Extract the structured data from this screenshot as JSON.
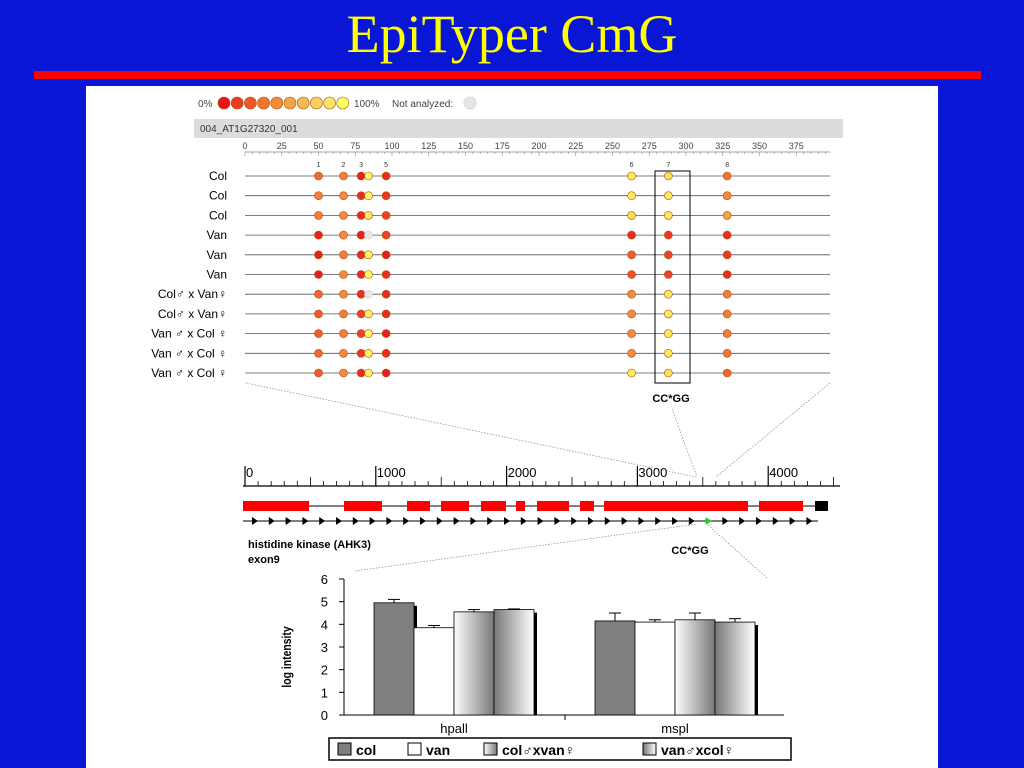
{
  "slide": {
    "title": "EpiTyper CmG"
  },
  "methylation_panel": {
    "legend_low": "0%",
    "legend_high": "100%",
    "legend_na": "Not analyzed:",
    "legend_colors": [
      "#e8141c",
      "#ea3a20",
      "#ec5a28",
      "#ee7430",
      "#f08c3a",
      "#f3a446",
      "#f6ba52",
      "#f9d05e",
      "#fbe468",
      "#ffff66"
    ],
    "amplicon": "004_AT1G27320_001",
    "ruler_ticks": [
      "0",
      "25",
      "50",
      "75",
      "100",
      "125",
      "150",
      "175",
      "200",
      "225",
      "250",
      "275",
      "300",
      "325",
      "350",
      "375"
    ],
    "cpg_labels": [
      {
        "label": "1",
        "pos": 50
      },
      {
        "label": "2",
        "pos": 67
      },
      {
        "label": "3",
        "pos": 79
      },
      {
        "label": "5",
        "pos": 96
      },
      {
        "label": "6",
        "pos": 263
      },
      {
        "label": "7",
        "pos": 288
      },
      {
        "label": "8",
        "pos": 328
      }
    ],
    "cpg_positions": [
      50,
      67,
      79,
      84,
      96,
      263,
      288,
      328
    ],
    "rows": [
      {
        "label": "Col",
        "meth": [
          0.35,
          0.45,
          0.05,
          0.95,
          0.1,
          0.9,
          0.85,
          0.4
        ]
      },
      {
        "label": "Col",
        "meth": [
          0.45,
          0.5,
          0.1,
          0.95,
          0.15,
          0.9,
          0.9,
          0.5
        ]
      },
      {
        "label": "Col",
        "meth": [
          0.45,
          0.5,
          0.1,
          0.9,
          0.2,
          0.85,
          0.9,
          0.6
        ]
      },
      {
        "label": "Van",
        "meth": [
          0.05,
          0.5,
          0.05,
          null,
          0.2,
          0.1,
          0.15,
          0.1
        ]
      },
      {
        "label": "Van",
        "meth": [
          0.05,
          0.45,
          0.1,
          0.95,
          0.05,
          0.3,
          0.2,
          0.15
        ]
      },
      {
        "label": "Van",
        "meth": [
          0.05,
          0.5,
          0.1,
          0.95,
          0.1,
          0.25,
          0.2,
          0.1
        ]
      },
      {
        "label": "Col♂ x  Van♀",
        "meth": [
          0.35,
          0.5,
          0.1,
          null,
          0.1,
          0.5,
          0.9,
          0.45
        ]
      },
      {
        "label": "Col♂ x  Van♀",
        "meth": [
          0.3,
          0.45,
          0.2,
          0.95,
          0.1,
          0.5,
          0.9,
          0.45
        ]
      },
      {
        "label": "Van ♂ x Col ♀",
        "meth": [
          0.3,
          0.45,
          0.2,
          0.95,
          0.05,
          0.5,
          0.9,
          0.45
        ]
      },
      {
        "label": "Van ♂ x Col ♀",
        "meth": [
          0.35,
          0.5,
          0.15,
          0.95,
          0.1,
          0.5,
          0.9,
          0.4
        ]
      },
      {
        "label": "Van ♂ x Col ♀",
        "meth": [
          0.3,
          0.5,
          0.1,
          0.95,
          0.05,
          0.9,
          0.85,
          0.35
        ]
      }
    ],
    "highlight_label": "CC*GG"
  },
  "gene_map": {
    "ruler_ticks": [
      "0",
      "1000",
      "2000",
      "3000",
      "4000"
    ],
    "gene_label_line1": "histidine kinase (AHK3)",
    "gene_label_line2": "exon9",
    "site_label": "CC*GG",
    "exon_color": "#ff0000",
    "arrow_highlight_color": "#22cc22"
  },
  "chart_data": {
    "type": "bar",
    "categories": [
      "hpall",
      "mspl"
    ],
    "series": [
      {
        "name": "col",
        "values": [
          4.95,
          4.15
        ],
        "errors": [
          0.15,
          0.35
        ]
      },
      {
        "name": "van",
        "values": [
          3.85,
          4.1
        ],
        "errors": [
          0.1,
          0.1
        ]
      },
      {
        "name": "col♂xvan♀",
        "values": [
          4.55,
          4.2
        ],
        "errors": [
          0.1,
          0.3
        ]
      },
      {
        "name": "van♂xcol♀",
        "values": [
          4.65,
          4.1
        ],
        "errors": [
          0.03,
          0.15
        ]
      }
    ],
    "ylabel": "log intensity",
    "ylim": [
      0,
      6
    ],
    "yticks": [
      "0",
      "1",
      "2",
      "3",
      "4",
      "5",
      "6"
    ],
    "legend_position": "bottom",
    "grid": false
  }
}
